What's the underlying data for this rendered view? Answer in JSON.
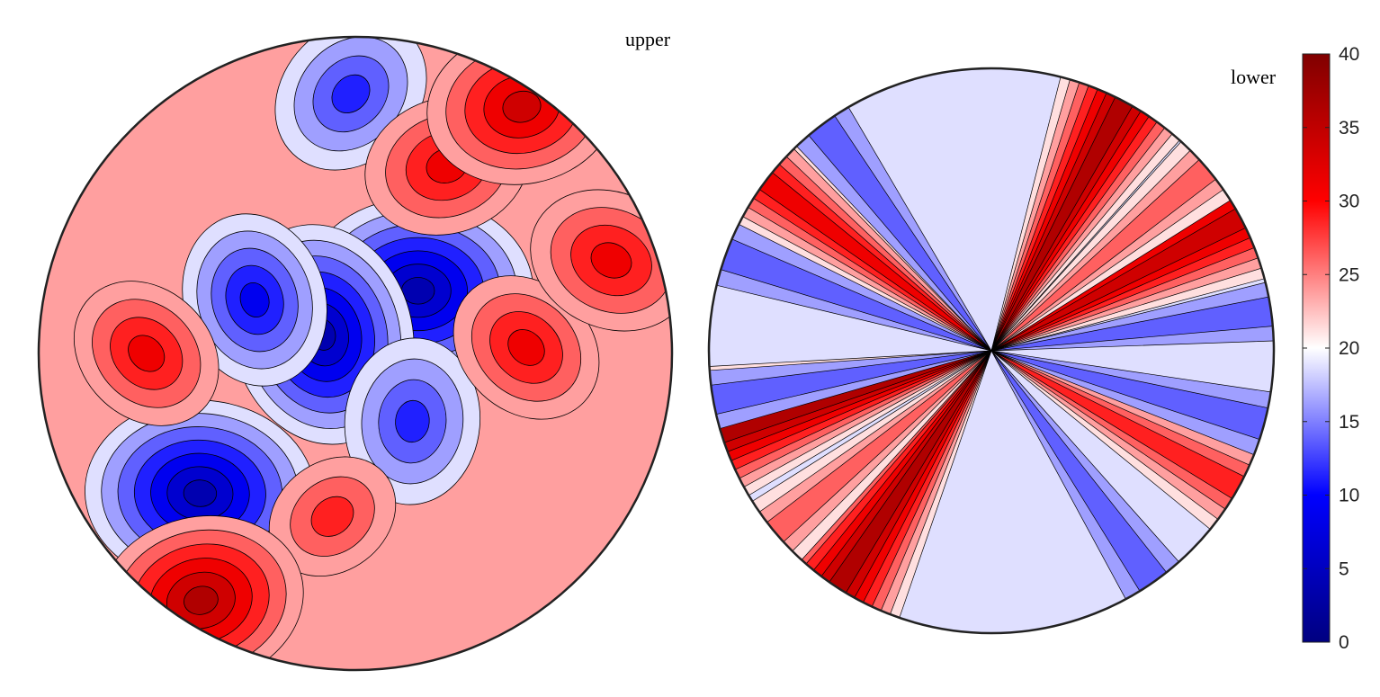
{
  "chart_data": [
    {
      "type": "heatmap",
      "projection": "polar contour plot",
      "title": "upper",
      "levels": [
        0,
        5,
        10,
        15,
        20,
        25,
        30,
        35,
        40
      ],
      "features": [
        {
          "kind": "min",
          "r": 0.28,
          "theta": 45,
          "value": 2
        },
        {
          "kind": "min",
          "r": 0.66,
          "theta": 222,
          "value": 2
        },
        {
          "kind": "min",
          "r": 0.12,
          "theta": 150,
          "value": 3
        },
        {
          "kind": "min",
          "r": 0.36,
          "theta": 152,
          "value": 9
        },
        {
          "kind": "min",
          "r": 0.28,
          "theta": 310,
          "value": 10
        },
        {
          "kind": "min",
          "r": 0.82,
          "theta": 91,
          "value": 10
        },
        {
          "kind": "max",
          "r": 0.66,
          "theta": 64,
          "value": 33
        },
        {
          "kind": "max",
          "r": 0.66,
          "theta": 180,
          "value": 32
        },
        {
          "kind": "max",
          "r": 0.54,
          "theta": 2,
          "value": 32
        },
        {
          "kind": "max",
          "r": 0.52,
          "theta": 262,
          "value": 29
        },
        {
          "kind": "max",
          "r": 0.94,
          "theta": 56,
          "value": 36
        },
        {
          "kind": "max",
          "r": 0.92,
          "theta": 238,
          "value": 38
        },
        {
          "kind": "max",
          "r": 0.86,
          "theta": 20,
          "value": 33
        }
      ]
    },
    {
      "type": "heatmap",
      "projection": "polar contour plot",
      "title": "lower",
      "background": 19,
      "rays": [
        {
          "angle": 62,
          "value": 37
        },
        {
          "angle": 28,
          "value": 36
        },
        {
          "angle": 197,
          "value": 37
        },
        {
          "angle": 237,
          "value": 38
        },
        {
          "angle": 143,
          "value": 32
        },
        {
          "angle": 331,
          "value": 31
        },
        {
          "angle": 40,
          "value": 27
        },
        {
          "angle": 220,
          "value": 27
        },
        {
          "angle": 127,
          "value": 13
        },
        {
          "angle": 160,
          "value": 13
        },
        {
          "angle": 305,
          "value": 13
        },
        {
          "angle": 345,
          "value": 13
        },
        {
          "angle": 190,
          "value": 14
        },
        {
          "angle": 8,
          "value": 14
        }
      ]
    },
    {
      "type": "colorbar",
      "ticks": [
        "0",
        "5",
        "10",
        "15",
        "20",
        "25",
        "30",
        "35",
        "40"
      ],
      "range": [
        0,
        40
      ],
      "colormap": [
        "#000080",
        "#0000ff",
        "#ffffff",
        "#ff0000",
        "#800000"
      ]
    }
  ]
}
